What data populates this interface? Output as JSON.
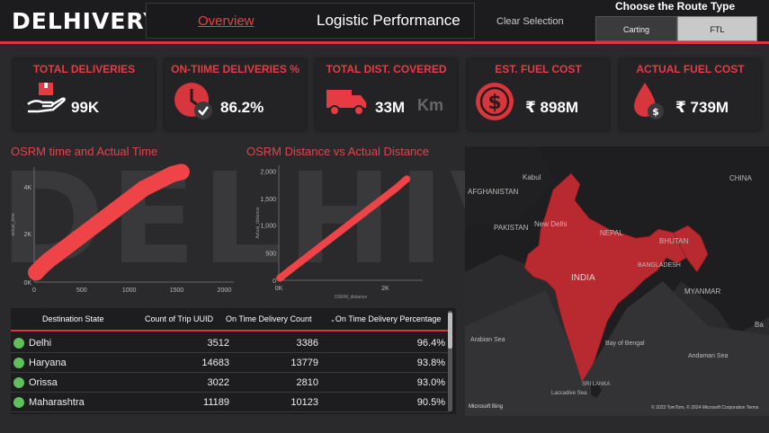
{
  "header": {
    "logo": "DELHIVERY",
    "nav_overview": "Overview",
    "nav_title": "Logistic Performance",
    "clear_selection": "Clear Selection",
    "route_type_label": "Choose the Route Type",
    "route_options": [
      "Carting",
      "FTL"
    ],
    "route_selected": "FTL"
  },
  "kpis": [
    {
      "title": "TOTAL DELIVERIES",
      "value": "99K",
      "icon": "hand-box-icon"
    },
    {
      "title": "ON-TIIME DELIVERIES %",
      "value": "86.2%",
      "icon": "clock-check-icon"
    },
    {
      "title": "TOTAL DIST. COVERED",
      "value": "33M",
      "unit": "Km",
      "icon": "truck-icon"
    },
    {
      "title": "EST. FUEL COST",
      "value": "₹ 898M",
      "icon": "dollar-coin-icon"
    },
    {
      "title": "ACTUAL FUEL COST",
      "value": "₹ 739M",
      "icon": "fuel-drop-icon"
    }
  ],
  "watermark": "DELHIV",
  "chart_data": [
    {
      "type": "scatter",
      "title": "OSRM time and Actual Time",
      "xlabel": "",
      "ylabel": "actual_time",
      "x_ticks": [
        "0",
        "500",
        "1000",
        "1500",
        "2000"
      ],
      "y_ticks": [
        "0K",
        "2K",
        "4K"
      ],
      "xlim": [
        0,
        2100
      ],
      "ylim": [
        0,
        4800
      ],
      "color": "#ef4447",
      "x": [
        20,
        80,
        150,
        250,
        350,
        450,
        550,
        650,
        750,
        850,
        950,
        1050,
        1150,
        1250,
        1350,
        1450,
        1550
      ],
      "y": [
        400,
        650,
        900,
        1200,
        1500,
        1800,
        2100,
        2400,
        2700,
        3000,
        3300,
        3600,
        3900,
        4100,
        4300,
        4500,
        4600
      ]
    },
    {
      "type": "scatter",
      "title": "OSRM Distance vs Actual Distance",
      "xlabel": "OSRM_distance",
      "ylabel": "Actual_distance",
      "x_ticks": [
        "0K",
        "2K"
      ],
      "y_ticks": [
        "0",
        "500",
        "1,000",
        "1,500",
        "2,000"
      ],
      "xlim": [
        0,
        2700
      ],
      "ylim": [
        0,
        2100
      ],
      "color": "#ef4447",
      "x": [
        20,
        200,
        400,
        600,
        800,
        1000,
        1200,
        1400,
        1600,
        1800,
        2000,
        2200,
        2400
      ],
      "y": [
        40,
        180,
        330,
        480,
        630,
        780,
        930,
        1080,
        1230,
        1380,
        1530,
        1680,
        1850
      ]
    }
  ],
  "table": {
    "columns": [
      "Destination State",
      "Count of Trip UUID",
      "On Time Delivery Count",
      "On Time Delivery Percentage"
    ],
    "rows": [
      {
        "state": "Delhi",
        "count": "3512",
        "on_time": "3386",
        "pct": "96.4%"
      },
      {
        "state": "Haryana",
        "count": "14683",
        "on_time": "13779",
        "pct": "93.8%"
      },
      {
        "state": "Orissa",
        "count": "3022",
        "on_time": "2810",
        "pct": "93.0%"
      },
      {
        "state": "Maharashtra",
        "count": "11189",
        "on_time": "10123",
        "pct": "90.5%"
      }
    ]
  },
  "map": {
    "labels": [
      "AFGHANISTAN",
      "Kabul",
      "PAKISTAN",
      "New Delhi",
      "NEPAL",
      "BHUTAN",
      "BANGLADESH",
      "INDIA",
      "MYANMAR",
      "Bay of Bengal",
      "Arabian Sea",
      "SRI LANKA",
      "Laccadive Sea",
      "Andaman Sea",
      "CHINA",
      "Ba"
    ],
    "bing": "Microsoft Bing",
    "copyright": "© 2023 TomTom, © 2024 Microsoft Corporation  Terms"
  }
}
